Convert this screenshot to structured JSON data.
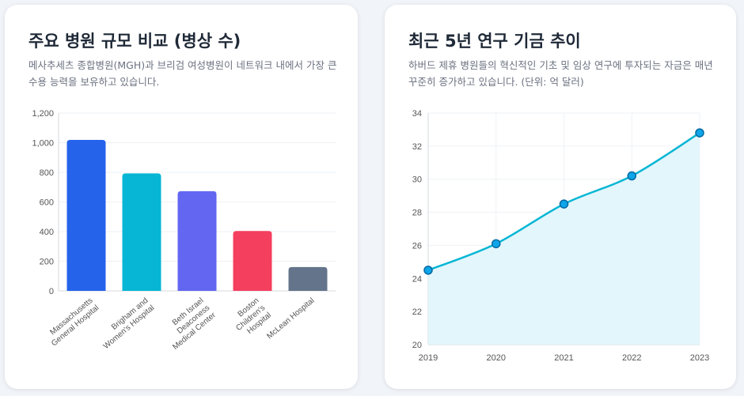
{
  "left_card": {
    "title": "주요 병원 규모 비교 (병상 수)",
    "description": "메사추세츠 종합병원(MGH)과 브리검 여성병원이 네트워크 내에서 가장 큰 수용 능력을 보유하고 있습니다."
  },
  "right_card": {
    "title": "최근 5년 연구 기금 추이",
    "description": "하버드 제휴 병원들의 혁신적인 기초 및 임상 연구에 투자되는 자금은 매년 꾸준히 증가하고 있습니다. (단위: 억 달러)"
  },
  "colors": {
    "bars": [
      "#2563eb",
      "#06b6d4",
      "#6366f1",
      "#f43f5e",
      "#64748b"
    ],
    "line": "#06b6d4",
    "point_fill": "#0ea5e9",
    "point_stroke": "#0369a1",
    "area_fill": "#e0f5fc",
    "grid": "#eef1f4"
  },
  "chart_data": [
    {
      "type": "bar",
      "title": "주요 병원 규모 비교 (병상 수)",
      "categories": [
        [
          "Massachusetts",
          "General Hospital"
        ],
        [
          "Brigham and",
          "Women's Hospital"
        ],
        [
          "Beth Israel",
          "Deaconess",
          "Medical Center"
        ],
        [
          "Boston",
          "Children's",
          "Hospital"
        ],
        [
          "McLean Hospital"
        ]
      ],
      "values": [
        1019,
        793,
        673,
        404,
        161
      ],
      "ylim": [
        0,
        1200
      ],
      "yticks": [
        0,
        200,
        400,
        600,
        800,
        1000,
        1200
      ],
      "ytick_labels": [
        "0",
        "200",
        "400",
        "600",
        "800",
        "1,000",
        "1,200"
      ],
      "grid": true
    },
    {
      "type": "area",
      "title": "최근 5년 연구 기금 추이",
      "x": [
        "2019",
        "2020",
        "2021",
        "2022",
        "2023"
      ],
      "values": [
        24.5,
        26.1,
        28.5,
        30.2,
        32.8
      ],
      "ylim": [
        20,
        34
      ],
      "yticks": [
        20,
        22,
        24,
        26,
        28,
        30,
        32,
        34
      ],
      "ytick_labels": [
        "20",
        "22",
        "24",
        "26",
        "28",
        "30",
        "32",
        "34"
      ],
      "grid": true
    }
  ]
}
